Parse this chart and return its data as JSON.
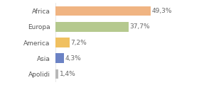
{
  "categories": [
    "Africa",
    "Europa",
    "America",
    "Asia",
    "Apolidi"
  ],
  "values": [
    49.3,
    37.7,
    7.2,
    4.3,
    1.4
  ],
  "labels": [
    "49,3%",
    "37,7%",
    "7,2%",
    "4,3%",
    "1,4%"
  ],
  "bar_colors": [
    "#f0b482",
    "#b5c98e",
    "#f0c060",
    "#6b82c4",
    "#b8b8b8"
  ],
  "background_color": "#ffffff",
  "label_fontsize": 6.5,
  "category_fontsize": 6.5,
  "xlim": [
    0,
    62
  ],
  "bar_height": 0.6
}
